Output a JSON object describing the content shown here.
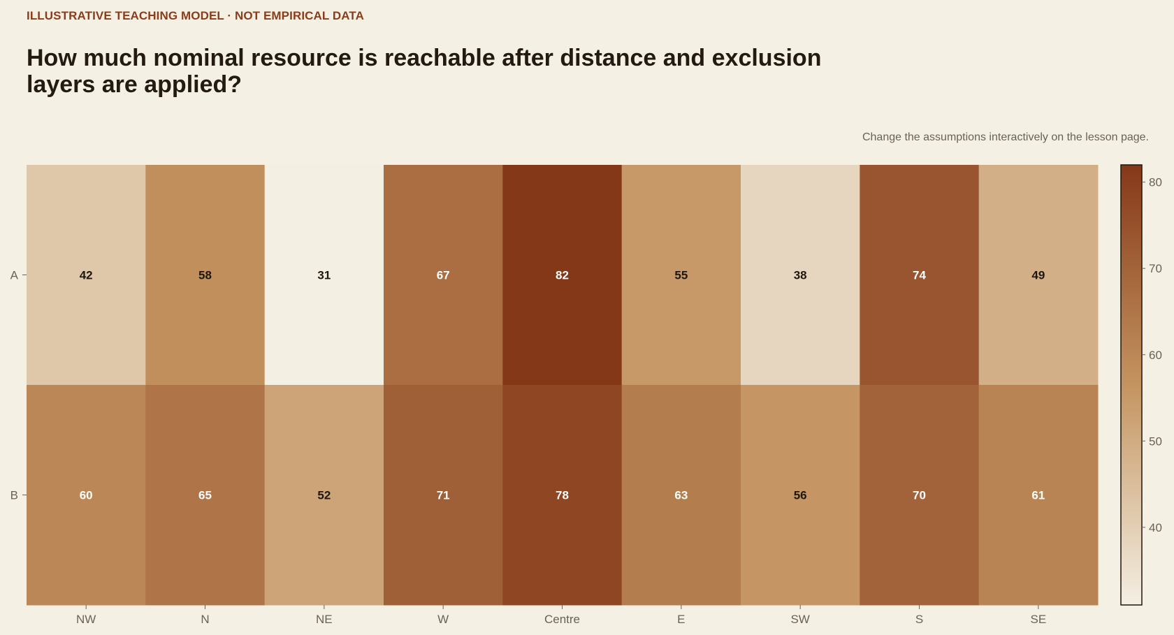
{
  "kicker": "ILLUSTRATIVE TEACHING MODEL · NOT EMPIRICAL DATA",
  "title": "How much nominal resource is reachable after distance and exclusion layers are applied?",
  "note": "Change the assumptions interactively on the lesson page.",
  "colors": {
    "low": "#f4efe3",
    "mid": "#c49460",
    "high": "#853818",
    "text_dark": "#1f160e",
    "text_light": "#ffffff"
  },
  "chart_data": {
    "type": "heatmap",
    "title": "",
    "xlabel": "",
    "ylabel": "",
    "columns": [
      "NW",
      "N",
      "NE",
      "W",
      "Centre",
      "E",
      "SW",
      "S",
      "SE"
    ],
    "rows": [
      "A",
      "B"
    ],
    "values": [
      [
        42,
        58,
        31,
        67,
        82,
        55,
        38,
        74,
        49
      ],
      [
        60,
        65,
        52,
        71,
        78,
        63,
        56,
        70,
        61
      ]
    ],
    "value_range": [
      31,
      82
    ],
    "colorbar": {
      "ticks": [
        40,
        50,
        60,
        70,
        80
      ],
      "position": "right"
    },
    "grid": false
  }
}
